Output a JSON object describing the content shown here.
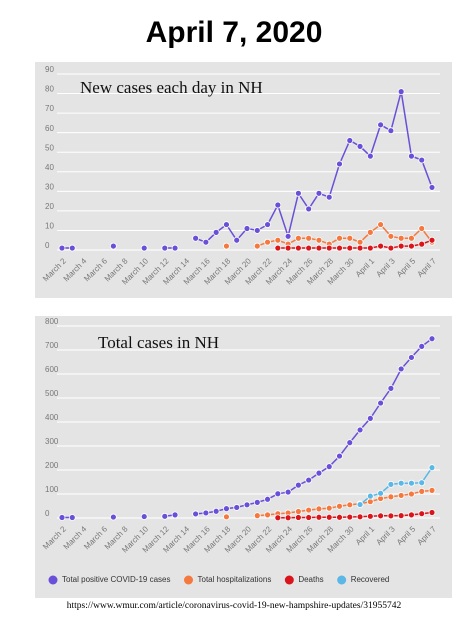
{
  "title": "April 7, 2020",
  "source": "https://www.wmur.com/article/coronavirus-covid-19-new-hampshire-updates/31955742",
  "chart_data": [
    {
      "type": "line",
      "title": "New cases each day in NH",
      "categories": [
        "March 2",
        null,
        "March 4",
        null,
        "March 6",
        null,
        "March 8",
        null,
        "March 10",
        null,
        "March 12",
        null,
        "March 14",
        null,
        "March 16",
        null,
        "March 18",
        null,
        "March 20",
        null,
        "March 22",
        null,
        "March 24",
        null,
        "March 26",
        null,
        "March 28",
        null,
        "March 30",
        null,
        "April 1",
        null,
        "April 3",
        null,
        "April 5",
        null,
        "April 7"
      ],
      "series": [
        {
          "color": "#6a4fd8",
          "values": [
            1,
            1,
            null,
            null,
            null,
            2,
            null,
            null,
            1,
            null,
            1,
            1,
            null,
            6,
            4,
            9,
            13,
            5,
            11,
            10,
            13,
            23,
            7,
            29,
            21,
            29,
            27,
            44,
            56,
            53,
            48,
            64,
            61,
            81,
            48,
            46,
            32
          ]
        },
        {
          "color": "#f5793f",
          "values": [
            null,
            null,
            null,
            null,
            null,
            null,
            null,
            null,
            null,
            null,
            null,
            null,
            null,
            null,
            null,
            null,
            2,
            null,
            null,
            2,
            4,
            5,
            3,
            6,
            6,
            5,
            3,
            6,
            6,
            4,
            9,
            13,
            7,
            6,
            6,
            11,
            4
          ]
        },
        {
          "color": "#d9151b",
          "values": [
            null,
            null,
            null,
            null,
            null,
            null,
            null,
            null,
            null,
            null,
            null,
            null,
            null,
            null,
            null,
            null,
            null,
            null,
            null,
            null,
            null,
            1,
            1,
            1,
            1,
            1,
            1,
            1,
            1,
            1,
            1,
            2,
            1,
            2,
            2,
            3,
            5
          ]
        }
      ],
      "ylim": [
        0,
        90
      ],
      "yticks": [
        0,
        10,
        20,
        30,
        40,
        50,
        60,
        70,
        80,
        90
      ],
      "grid": true
    },
    {
      "type": "line",
      "title": "Total cases in NH",
      "categories": [
        "March 2",
        null,
        "March 4",
        null,
        "March 6",
        null,
        "March 8",
        null,
        "March 10",
        null,
        "March 12",
        null,
        "March 14",
        null,
        "March 16",
        null,
        "March 18",
        null,
        "March 20",
        null,
        "March 22",
        null,
        "March 24",
        null,
        "March 26",
        null,
        "March 28",
        null,
        "March 30",
        null,
        "April 1",
        null,
        "April 3",
        null,
        "April 5",
        null,
        "April 7"
      ],
      "series": [
        {
          "name": "Total positive COVID-19 cases",
          "color": "#6a4fd8",
          "values": [
            2,
            2,
            null,
            null,
            null,
            4,
            null,
            null,
            6,
            null,
            7,
            13,
            null,
            17,
            21,
            28,
            39,
            44,
            55,
            65,
            78,
            101,
            108,
            137,
            158,
            187,
            214,
            258,
            314,
            367,
            415,
            479,
            540,
            621,
            669,
            715,
            747
          ]
        },
        {
          "name": "Total hospitalizations",
          "color": "#f5793f",
          "values": [
            null,
            null,
            null,
            null,
            null,
            null,
            null,
            null,
            null,
            null,
            null,
            null,
            null,
            null,
            null,
            null,
            5,
            null,
            null,
            10,
            13,
            18,
            21,
            27,
            33,
            38,
            41,
            49,
            55,
            59,
            68,
            81,
            88,
            94,
            100,
            111,
            115
          ]
        },
        {
          "name": "Deaths",
          "color": "#d9151b",
          "values": [
            null,
            null,
            null,
            null,
            null,
            null,
            null,
            null,
            null,
            null,
            null,
            null,
            null,
            null,
            null,
            null,
            null,
            null,
            null,
            null,
            null,
            1,
            1,
            2,
            2,
            3,
            3,
            3,
            4,
            5,
            7,
            9,
            9,
            10,
            13,
            18,
            23
          ]
        },
        {
          "name": "Recovered",
          "color": "#5ab7e6",
          "values": [
            null,
            null,
            null,
            null,
            null,
            null,
            null,
            null,
            null,
            null,
            null,
            null,
            null,
            null,
            null,
            null,
            null,
            null,
            null,
            null,
            null,
            null,
            null,
            null,
            null,
            null,
            null,
            null,
            null,
            56,
            91,
            103,
            140,
            145,
            145,
            147,
            210
          ]
        }
      ],
      "ylim": [
        0,
        800
      ],
      "yticks": [
        0,
        100,
        200,
        300,
        400,
        500,
        600,
        700,
        800
      ],
      "grid": true,
      "legend": "bottom"
    }
  ]
}
